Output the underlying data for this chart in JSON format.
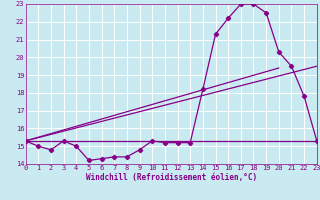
{
  "xlabel": "Windchill (Refroidissement éolien,°C)",
  "bg_color": "#c8eaf0",
  "grid_color": "#b0d8e0",
  "line_color": "#880088",
  "xlim": [
    0,
    23
  ],
  "ylim": [
    14,
    23
  ],
  "xticks": [
    0,
    1,
    2,
    3,
    4,
    5,
    6,
    7,
    8,
    9,
    10,
    11,
    12,
    13,
    14,
    15,
    16,
    17,
    18,
    19,
    20,
    21,
    22,
    23
  ],
  "yticks": [
    14,
    15,
    16,
    17,
    18,
    19,
    20,
    21,
    22,
    23
  ],
  "series1_x": [
    0,
    1,
    2,
    3,
    4,
    5,
    6,
    7,
    8,
    9,
    10,
    11,
    12,
    13,
    14,
    15,
    16,
    17,
    18,
    19,
    20,
    21,
    22,
    23
  ],
  "series1_y": [
    15.3,
    15.0,
    14.8,
    15.3,
    15.0,
    14.2,
    14.3,
    14.4,
    14.4,
    14.8,
    15.3,
    15.2,
    15.2,
    15.2,
    18.2,
    21.3,
    22.2,
    23.0,
    23.0,
    22.5,
    20.3,
    19.5,
    17.8,
    15.3
  ],
  "series2_x": [
    0,
    23
  ],
  "series2_y": [
    15.3,
    15.3
  ],
  "series3_x": [
    0,
    23
  ],
  "series3_y": [
    15.3,
    19.5
  ],
  "series4_x": [
    0,
    20
  ],
  "series4_y": [
    15.3,
    19.4
  ]
}
